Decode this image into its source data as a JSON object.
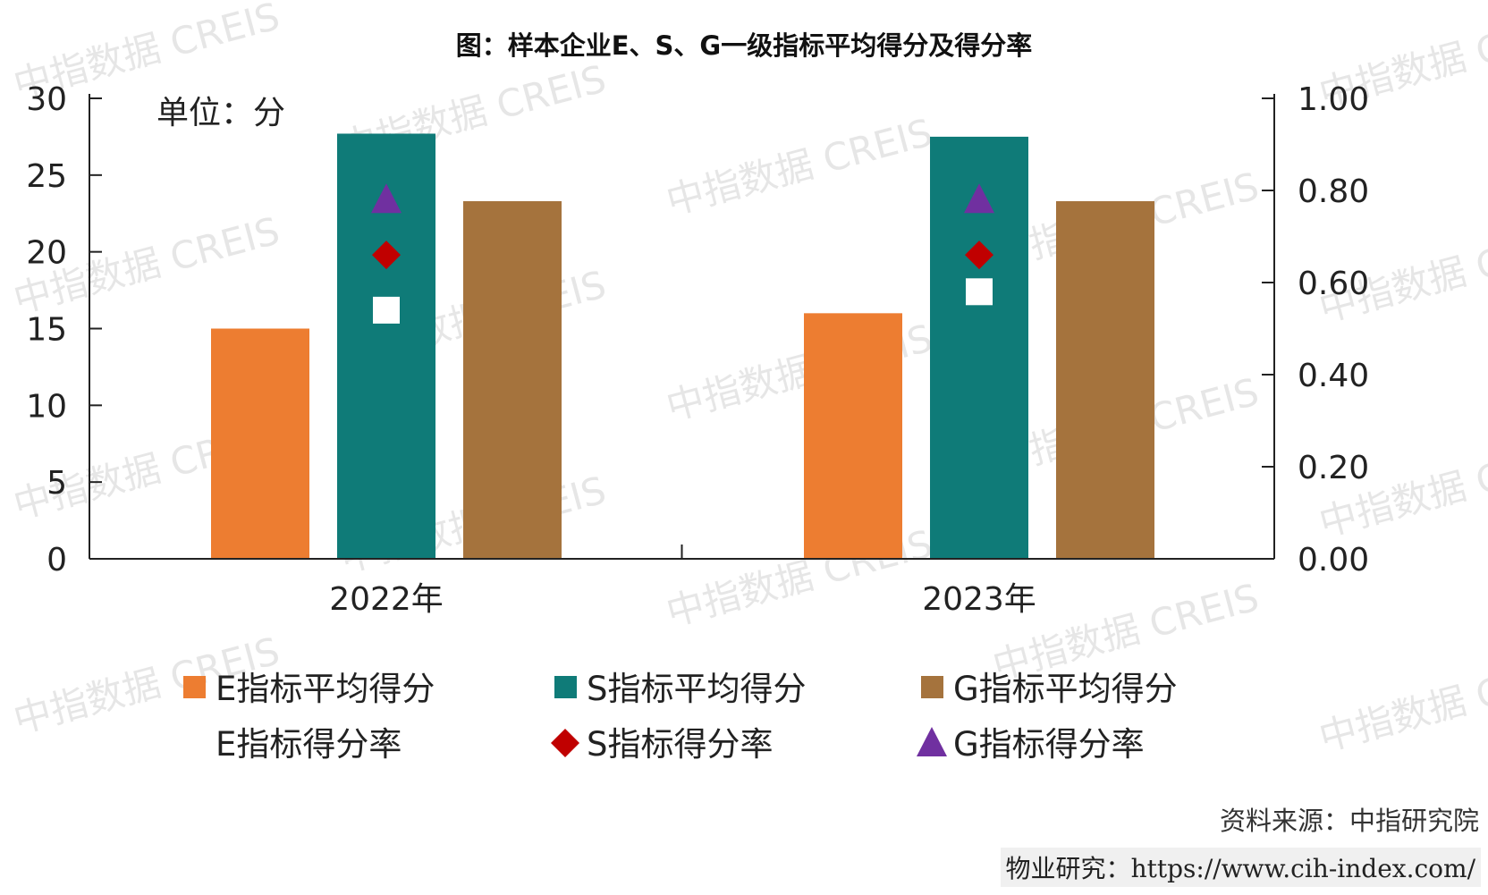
{
  "title": "图：样本企业E、S、G一级指标平均得分及得分率",
  "unit_label": "单位：分",
  "source": "资料来源：中指研究院",
  "site_prefix": "物业研究：",
  "site_url": "https://www.cih-index.com/",
  "watermark": "中指数据 CREIS",
  "colors": {
    "e_score": "#ED7D31",
    "s_score": "#0F7B78",
    "g_score": "#A5733D",
    "e_rate": "#FFFFFF",
    "s_rate": "#C00000",
    "g_rate": "#7030A0"
  },
  "chart_data": {
    "type": "bar",
    "categories": [
      "2022年",
      "2023年"
    ],
    "y_left": {
      "min": 0,
      "max": 30,
      "ticks": [
        "0",
        "5",
        "10",
        "15",
        "20",
        "25",
        "30"
      ]
    },
    "y_right": {
      "min": 0,
      "max": 1.0,
      "ticks": [
        "0.00",
        "0.20",
        "0.40",
        "0.60",
        "0.80",
        "1.00"
      ]
    },
    "bar_series": [
      {
        "name": "E指标平均得分",
        "values": [
          15.0,
          16.0
        ],
        "color_key": "e_score",
        "axis": "left"
      },
      {
        "name": "S指标平均得分",
        "values": [
          27.7,
          27.5
        ],
        "color_key": "s_score",
        "axis": "left"
      },
      {
        "name": "G指标平均得分",
        "values": [
          23.3,
          23.3
        ],
        "color_key": "g_score",
        "axis": "left"
      }
    ],
    "marker_series": [
      {
        "name": "E指标得分率",
        "values": [
          0.54,
          0.58
        ],
        "marker": "square",
        "color_key": "e_rate",
        "axis": "right"
      },
      {
        "name": "S指标得分率",
        "values": [
          0.66,
          0.66
        ],
        "marker": "diamond",
        "color_key": "s_rate",
        "axis": "right"
      },
      {
        "name": "G指标得分率",
        "values": [
          0.78,
          0.78
        ],
        "marker": "triangle",
        "color_key": "g_rate",
        "axis": "right"
      }
    ],
    "legend_position": "bottom",
    "grid": false
  }
}
